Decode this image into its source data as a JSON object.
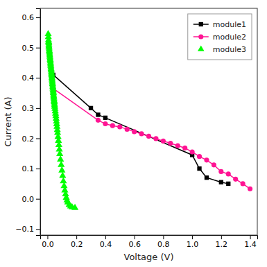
{
  "chart_data": {
    "type": "line",
    "x_label": "Voltage (V)",
    "y_label": "Current (A)",
    "xlim": [
      -0.05,
      1.45
    ],
    "ylim": [
      -0.12,
      0.63
    ],
    "xticks": [
      {
        "value": 0.0,
        "label": "0.0"
      },
      0.2,
      0.4,
      0.6,
      0.8,
      {
        "value": 1.0,
        "label": "1.0"
      },
      1.2,
      1.4
    ],
    "yticks": [
      {
        "value": -0.1,
        "label": "−0.1"
      },
      {
        "value": 0.0,
        "label": "0.0"
      },
      0.1,
      0.2,
      0.3,
      0.4,
      0.5,
      0.6
    ],
    "grid": false,
    "legend": "upper right",
    "series": [
      {
        "name": "module1",
        "type": "line",
        "marker": "square",
        "color": "#000000",
        "x": [
          0.04,
          0.3,
          0.35,
          0.4,
          1.0,
          1.05,
          1.1,
          1.2,
          1.25
        ],
        "values": [
          0.41,
          0.3,
          0.278,
          0.268,
          0.145,
          0.1,
          0.07,
          0.055,
          0.05
        ]
      },
      {
        "name": "module2",
        "type": "line",
        "marker": "circle",
        "color": "#FF1493",
        "x": [
          0.04,
          0.35,
          0.4,
          0.45,
          0.5,
          0.55,
          0.6,
          0.65,
          0.7,
          0.75,
          0.8,
          0.85,
          0.9,
          0.95,
          1.0,
          1.05,
          1.1,
          1.15,
          1.2,
          1.25,
          1.3,
          1.35,
          1.4
        ],
        "values": [
          0.365,
          0.26,
          0.248,
          0.242,
          0.238,
          0.23,
          0.222,
          0.215,
          0.207,
          0.199,
          0.191,
          0.184,
          0.176,
          0.168,
          0.155,
          0.14,
          0.128,
          0.112,
          0.09,
          0.082,
          0.065,
          0.05,
          0.033
        ]
      },
      {
        "name": "module3",
        "type": "scatter",
        "marker": "triangle",
        "color": "#00FF00",
        "x": [
          0.005,
          0.006,
          0.007,
          0.008,
          0.009,
          0.01,
          0.01,
          0.011,
          0.012,
          0.013,
          0.014,
          0.015,
          0.016,
          0.017,
          0.018,
          0.019,
          0.02,
          0.021,
          0.022,
          0.023,
          0.024,
          0.025,
          0.026,
          0.027,
          0.028,
          0.029,
          0.03,
          0.031,
          0.032,
          0.033,
          0.034,
          0.035,
          0.036,
          0.037,
          0.038,
          0.039,
          0.04,
          0.041,
          0.042,
          0.043,
          0.044,
          0.045,
          0.046,
          0.047,
          0.048,
          0.049,
          0.05,
          0.052,
          0.054,
          0.056,
          0.058,
          0.06,
          0.062,
          0.064,
          0.066,
          0.068,
          0.07,
          0.073,
          0.076,
          0.079,
          0.082,
          0.085,
          0.09,
          0.095,
          0.1,
          0.105,
          0.11,
          0.115,
          0.12,
          0.125,
          0.13,
          0.135,
          0.14,
          0.15,
          0.16,
          0.17,
          0.19
        ],
        "values": [
          0.545,
          0.535,
          0.525,
          0.52,
          0.515,
          0.51,
          0.505,
          0.5,
          0.495,
          0.49,
          0.485,
          0.48,
          0.475,
          0.47,
          0.465,
          0.46,
          0.455,
          0.45,
          0.445,
          0.44,
          0.435,
          0.43,
          0.425,
          0.42,
          0.415,
          0.41,
          0.405,
          0.4,
          0.395,
          0.39,
          0.385,
          0.38,
          0.375,
          0.37,
          0.365,
          0.36,
          0.355,
          0.35,
          0.345,
          0.34,
          0.335,
          0.33,
          0.325,
          0.32,
          0.315,
          0.31,
          0.305,
          0.298,
          0.29,
          0.282,
          0.274,
          0.265,
          0.256,
          0.247,
          0.238,
          0.228,
          0.218,
          0.205,
          0.192,
          0.178,
          0.163,
          0.148,
          0.13,
          0.112,
          0.094,
          0.076,
          0.058,
          0.042,
          0.028,
          0.015,
          0.004,
          -0.005,
          -0.012,
          -0.02,
          -0.025,
          -0.028,
          -0.03
        ]
      }
    ]
  }
}
